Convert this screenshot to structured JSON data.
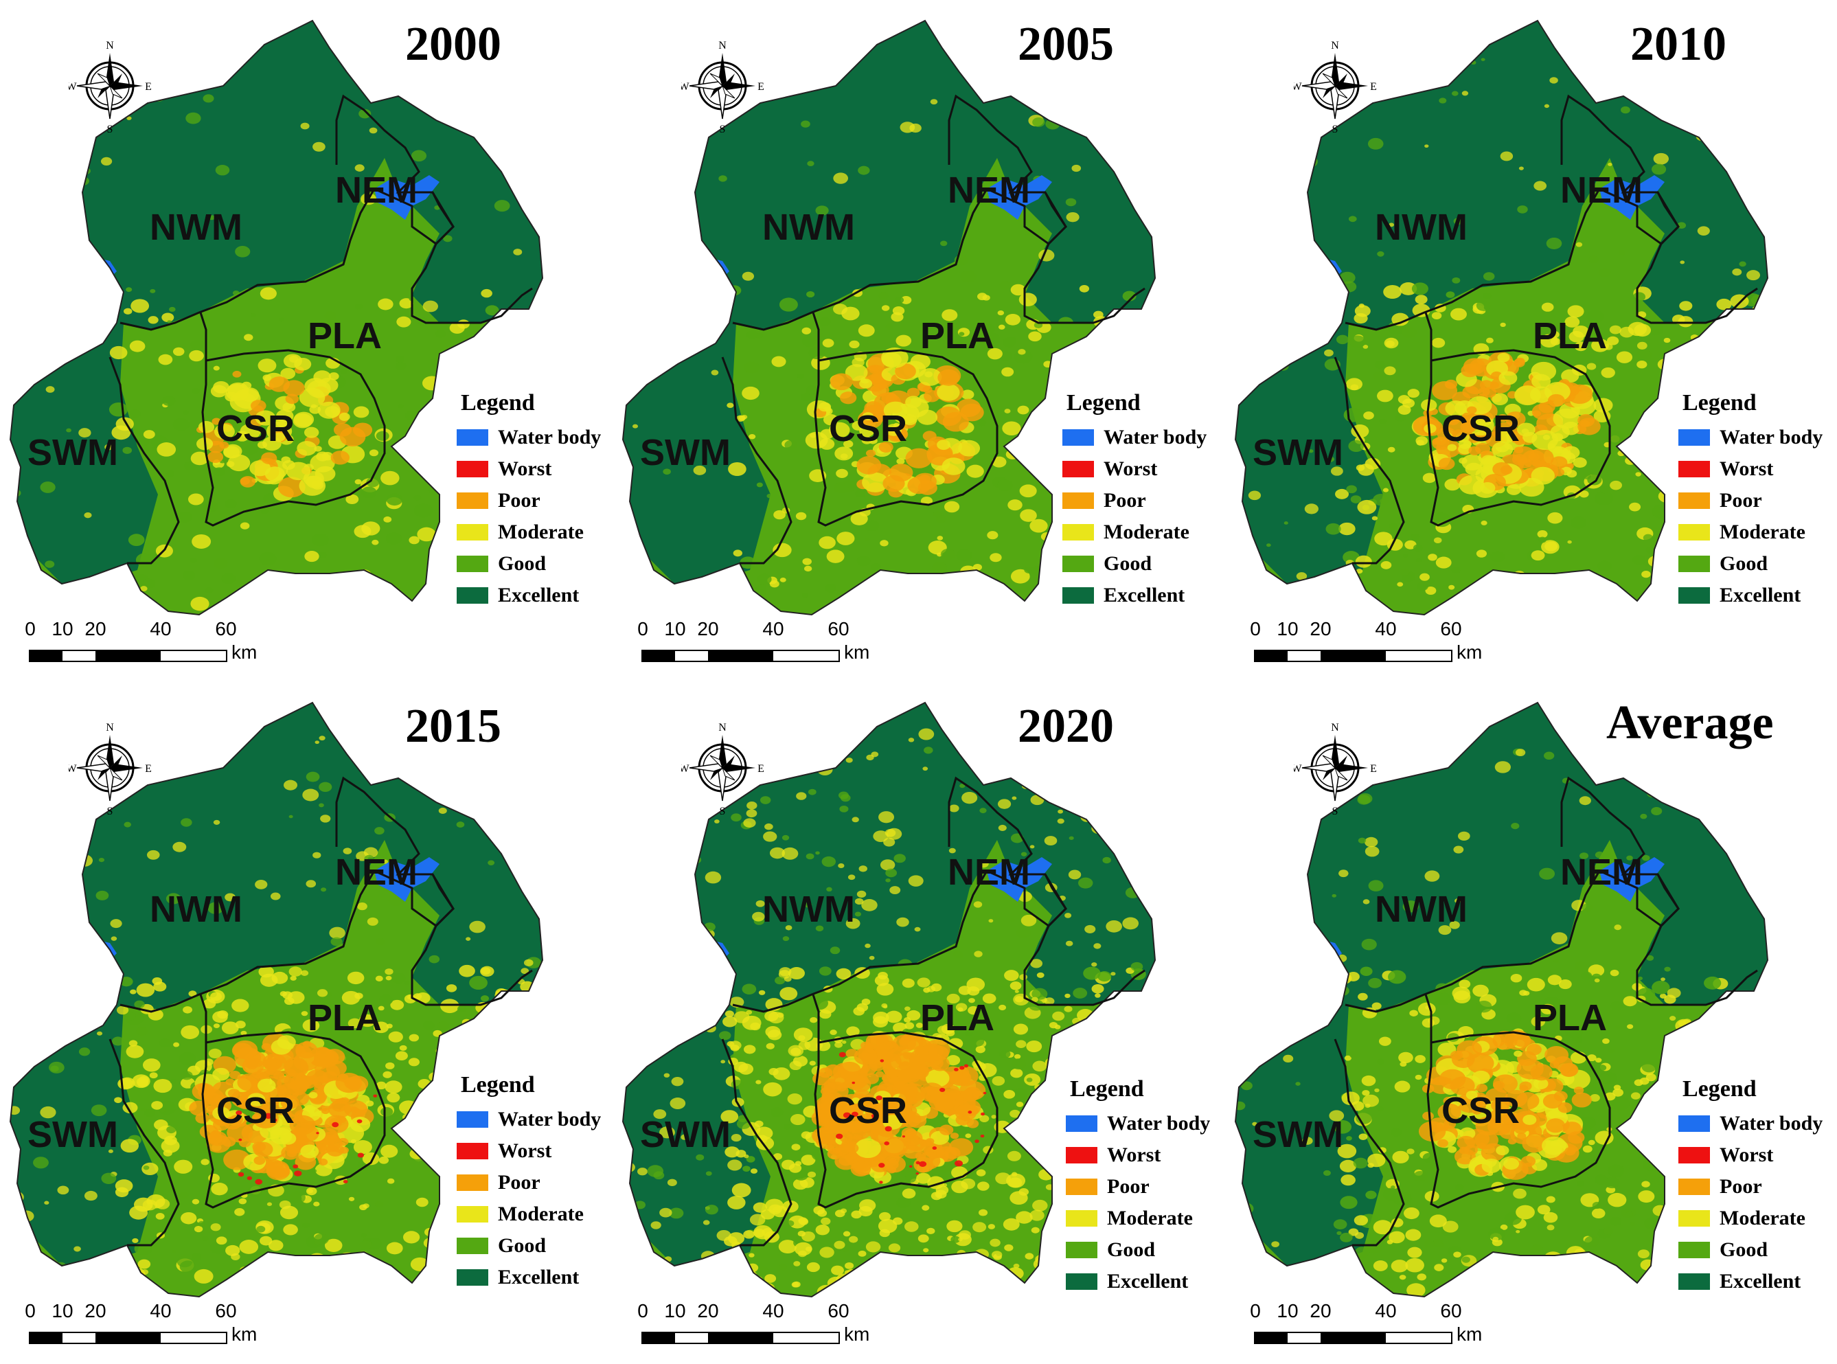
{
  "panels": [
    {
      "year": "2000",
      "variant": 0
    },
    {
      "year": "2005",
      "variant": 1
    },
    {
      "year": "2010",
      "variant": 2
    },
    {
      "year": "2015",
      "variant": 3
    },
    {
      "year": "2020",
      "variant": 4
    },
    {
      "year": "Average",
      "variant": 5
    }
  ],
  "regions": [
    "NWM",
    "NEM",
    "PLA",
    "SWM",
    "CSR"
  ],
  "legend": {
    "title": "Legend",
    "items": [
      {
        "label": "Water body",
        "color": "#1e6ff0"
      },
      {
        "label": "Worst",
        "color": "#ee1111"
      },
      {
        "label": "Poor",
        "color": "#f5a00a"
      },
      {
        "label": "Moderate",
        "color": "#e9e51a"
      },
      {
        "label": "Good",
        "color": "#54a812"
      },
      {
        "label": "Excellent",
        "color": "#0c6b3e"
      }
    ]
  },
  "scale_bar": {
    "ticks": [
      "0",
      "10",
      "20",
      "40",
      "60"
    ],
    "unit": "km"
  },
  "compass": {
    "n": "N",
    "s": "S",
    "e": "E",
    "w": "W"
  },
  "colors": {
    "excellent": "#0c6b3e",
    "good": "#54a812",
    "moderate": "#e9e51a",
    "poor": "#f5a00a",
    "worst": "#ee1111",
    "water": "#1e6ff0"
  }
}
